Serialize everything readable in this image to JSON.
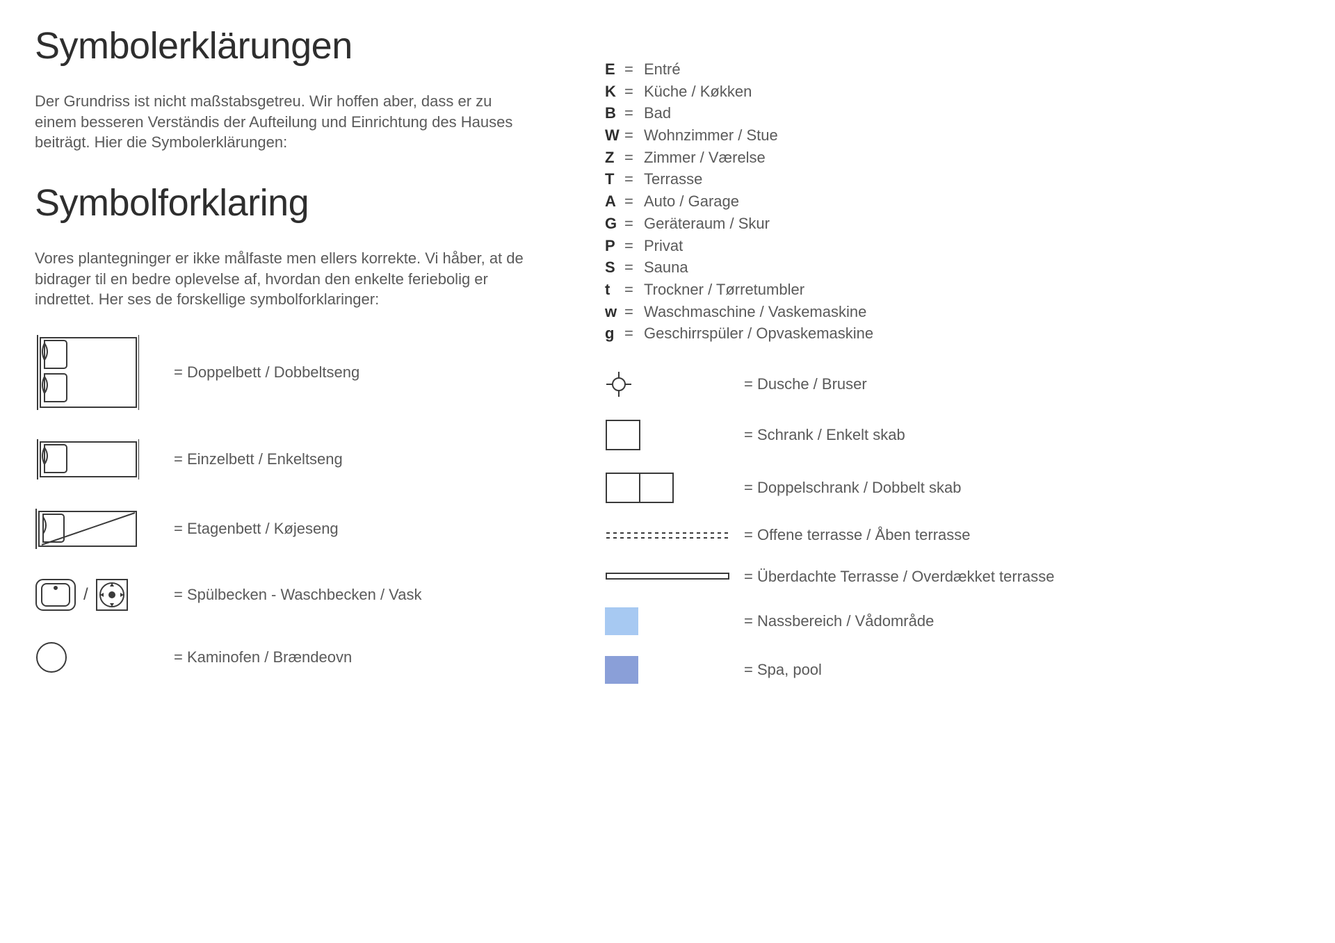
{
  "colors": {
    "text": "#5a5a5a",
    "text_dark": "#2e2e2e",
    "stroke": "#3a3a3a",
    "wet_area": "#a7c9f2",
    "spa_pool": "#8a9fd8",
    "background": "#ffffff"
  },
  "typography": {
    "heading_size_pt": 40,
    "body_size_pt": 16,
    "font_family": "Helvetica Neue"
  },
  "headings": {
    "de": "Symbolerklärungen",
    "da": "Symbolforklaring"
  },
  "intro": {
    "de": "Der Grundriss ist nicht maßstabsgetreu. Wir hoffen aber, dass er zu einem besseren Verständis der Aufteilung und Einrichtung des Hauses beiträgt. Hier die Symbolerklärungen:",
    "da": "Vores plantegninger er ikke målfaste men ellers korrekte. Vi håber, at de bidrager til en bedre oplevelse af, hvordan den enkelte feriebolig er indrettet. Her ses de forskellige symbolforklaringer:"
  },
  "letter_codes": [
    {
      "key": "E",
      "value": "Entré"
    },
    {
      "key": "K",
      "value": "Küche / Køkken"
    },
    {
      "key": "B",
      "value": "Bad"
    },
    {
      "key": "W",
      "value": "Wohnzimmer / Stue"
    },
    {
      "key": "Z",
      "value": "Zimmer / Værelse"
    },
    {
      "key": "T",
      "value": "Terrasse"
    },
    {
      "key": "A",
      "value": "Auto / Garage"
    },
    {
      "key": "G",
      "value": "Geräteraum / Skur"
    },
    {
      "key": "P",
      "value": "Privat"
    },
    {
      "key": "S",
      "value": "Sauna"
    },
    {
      "key": "t",
      "value": "Trockner / Tørretumbler"
    },
    {
      "key": "w",
      "value": "Waschmaschine / Vaskemaskine"
    },
    {
      "key": "g",
      "value": "Geschirrspüler / Opvaskemaskine"
    }
  ],
  "symbols_left": [
    {
      "icon": "double-bed",
      "label": "= Doppelbett / Dobbeltseng"
    },
    {
      "icon": "single-bed",
      "label": "= Einzelbett / Enkeltseng"
    },
    {
      "icon": "bunk-bed",
      "label": "= Etagenbett / Køjeseng"
    },
    {
      "icon": "sink",
      "label": "= Spülbecken - Waschbecken / Vask"
    },
    {
      "icon": "stove",
      "label": "= Kaminofen / Brændeovn"
    }
  ],
  "symbols_right": [
    {
      "icon": "shower",
      "label": "= Dusche / Bruser"
    },
    {
      "icon": "single-cabinet",
      "label": "= Schrank / Enkelt skab"
    },
    {
      "icon": "double-cabinet",
      "label": "= Doppelschrank / Dobbelt skab"
    },
    {
      "icon": "open-terrace",
      "label": "= Offene terrasse / Åben terrasse"
    },
    {
      "icon": "covered-terrace",
      "label": "= Überdachte Terrasse / Overdækket terrasse"
    },
    {
      "icon": "wet-area",
      "label": "= Nassbereich / Vådområde"
    },
    {
      "icon": "spa-pool",
      "label": "= Spa, pool"
    }
  ],
  "misc": {
    "slash": "/",
    "equals": "="
  }
}
